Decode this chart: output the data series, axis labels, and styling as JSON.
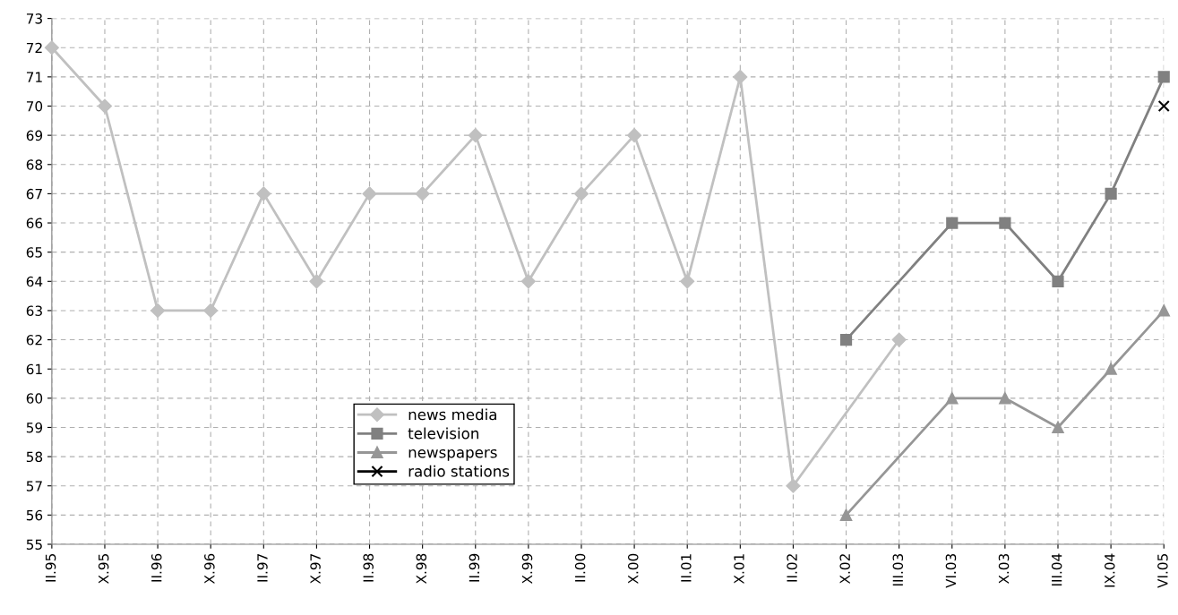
{
  "chart_data": {
    "type": "line",
    "categories": [
      "II.95",
      "X.95",
      "II.96",
      "X.96",
      "II.97",
      "X.97",
      "II.98",
      "X.98",
      "II.99",
      "X.99",
      "II.00",
      "X.00",
      "II.01",
      "X.01",
      "II.02",
      "X.02",
      "III.03",
      "VI.03",
      "X.03",
      "III.04",
      "IX.04",
      "VI.05"
    ],
    "series": [
      {
        "name": "news media",
        "color": "#c0c0c0",
        "marker": "diamond",
        "values": [
          72,
          70,
          63,
          63,
          67,
          64,
          67,
          67,
          69,
          64,
          67,
          69,
          64,
          71,
          57,
          null,
          62,
          null,
          null,
          null,
          null,
          null
        ]
      },
      {
        "name": "television",
        "color": "#808080",
        "marker": "square",
        "values": [
          null,
          null,
          null,
          null,
          null,
          null,
          null,
          null,
          null,
          null,
          null,
          null,
          null,
          null,
          null,
          62,
          null,
          66,
          66,
          64,
          67,
          71
        ]
      },
      {
        "name": "newspapers",
        "color": "#969696",
        "marker": "triangle",
        "values": [
          null,
          null,
          null,
          null,
          null,
          null,
          null,
          null,
          null,
          null,
          null,
          null,
          null,
          null,
          null,
          56,
          null,
          60,
          60,
          59,
          61,
          63
        ]
      },
      {
        "name": "radio stations",
        "color": "#000000",
        "marker": "cross",
        "values": [
          null,
          null,
          null,
          null,
          null,
          null,
          null,
          null,
          null,
          null,
          null,
          null,
          null,
          null,
          null,
          null,
          null,
          null,
          null,
          null,
          null,
          70
        ]
      }
    ],
    "ylim": [
      55,
      73
    ],
    "yticks": [
      55,
      56,
      57,
      58,
      59,
      60,
      61,
      62,
      63,
      64,
      65,
      66,
      67,
      68,
      69,
      70,
      71,
      72,
      73
    ],
    "grid": true,
    "legend": "bottom left"
  }
}
